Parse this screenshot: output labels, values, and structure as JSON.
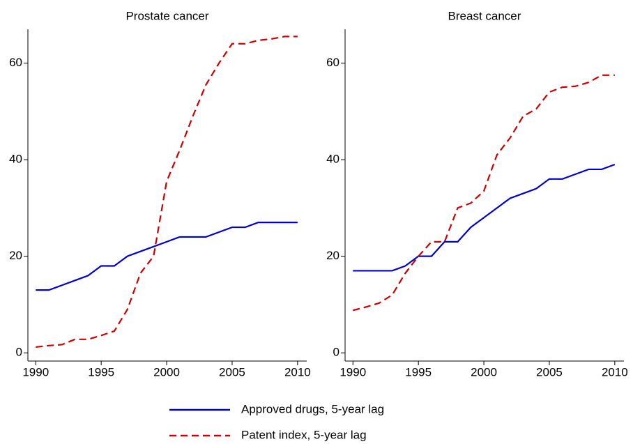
{
  "chart_data": [
    {
      "type": "line",
      "title": "Prostate cancer",
      "x": [
        1990,
        1991,
        1992,
        1993,
        1994,
        1995,
        1996,
        1997,
        1998,
        1999,
        2000,
        2001,
        2002,
        2003,
        2004,
        2005,
        2006,
        2007,
        2008,
        2009,
        2010
      ],
      "series": [
        {
          "name": "Approved drugs, 5-year lag",
          "color": "#0000cc",
          "dashed": false,
          "values": [
            13,
            13,
            14,
            15,
            16,
            18,
            18,
            20,
            21,
            22,
            23,
            24,
            24,
            24,
            25,
            26,
            26,
            27,
            27,
            27,
            27
          ]
        },
        {
          "name": "Patent index, 5-year lag",
          "color": "#cc0000",
          "dashed": true,
          "values": [
            1.2,
            1.5,
            1.7,
            2.8,
            2.8,
            3.6,
            4.5,
            9,
            16.5,
            20,
            35.5,
            42,
            49,
            55.5,
            60,
            64,
            64,
            64.7,
            65,
            65.5,
            65.5
          ]
        }
      ],
      "xlim": [
        1989.4,
        2010.7
      ],
      "xticks": [
        1990,
        1995,
        2000,
        2005,
        2010
      ],
      "ylim": [
        -1.7,
        67
      ],
      "yticks": [
        0,
        20,
        40,
        60
      ]
    },
    {
      "type": "line",
      "title": "Breast cancer",
      "x": [
        1990,
        1991,
        1992,
        1993,
        1994,
        1995,
        1996,
        1997,
        1998,
        1999,
        2000,
        2001,
        2002,
        2003,
        2004,
        2005,
        2006,
        2007,
        2008,
        2009,
        2010
      ],
      "series": [
        {
          "color": "#0000cc",
          "dashed": false,
          "values": [
            17,
            17,
            17,
            17,
            18,
            20,
            20,
            23,
            23,
            26,
            28,
            30,
            32,
            33,
            34,
            36,
            36,
            37,
            38,
            38,
            39
          ]
        },
        {
          "color": "#cc0000",
          "dashed": true,
          "values": [
            8.8,
            9.5,
            10.3,
            12,
            16.5,
            20,
            23,
            23,
            30,
            31,
            33.5,
            41,
            44.5,
            49,
            50.5,
            54,
            55,
            55.2,
            56,
            57.5,
            57.5
          ]
        }
      ],
      "xlim": [
        1989.4,
        2010.7
      ],
      "xticks": [
        1990,
        1995,
        2000,
        2005,
        2010
      ],
      "ylim": [
        -1.7,
        67
      ],
      "yticks": [
        0,
        20,
        40,
        60
      ]
    }
  ]
}
